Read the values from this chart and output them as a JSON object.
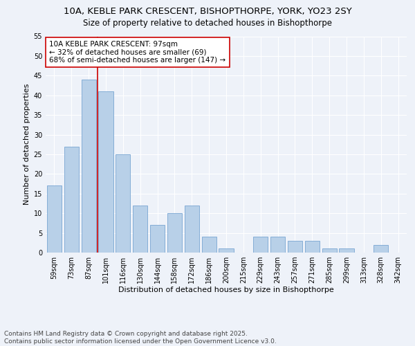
{
  "title1": "10A, KEBLE PARK CRESCENT, BISHOPTHORPE, YORK, YO23 2SY",
  "title2": "Size of property relative to detached houses in Bishopthorpe",
  "xlabel": "Distribution of detached houses by size in Bishopthorpe",
  "ylabel": "Number of detached properties",
  "categories": [
    "59sqm",
    "73sqm",
    "87sqm",
    "101sqm",
    "116sqm",
    "130sqm",
    "144sqm",
    "158sqm",
    "172sqm",
    "186sqm",
    "200sqm",
    "215sqm",
    "229sqm",
    "243sqm",
    "257sqm",
    "271sqm",
    "285sqm",
    "299sqm",
    "313sqm",
    "328sqm",
    "342sqm"
  ],
  "values": [
    17,
    27,
    44,
    41,
    25,
    12,
    7,
    10,
    12,
    4,
    1,
    0,
    4,
    4,
    3,
    3,
    1,
    1,
    0,
    2,
    0
  ],
  "bar_color": "#b8d0e8",
  "bar_edge_color": "#6699cc",
  "bar_edge_width": 0.5,
  "vline_x_index": 3,
  "vline_color": "#cc0000",
  "annotation_text": "10A KEBLE PARK CRESCENT: 97sqm\n← 32% of detached houses are smaller (69)\n68% of semi-detached houses are larger (147) →",
  "annotation_box_color": "#ffffff",
  "annotation_box_edge_color": "#cc0000",
  "ylim": [
    0,
    55
  ],
  "yticks": [
    0,
    5,
    10,
    15,
    20,
    25,
    30,
    35,
    40,
    45,
    50,
    55
  ],
  "background_color": "#eef2f9",
  "grid_color": "#ffffff",
  "footnote": "Contains HM Land Registry data © Crown copyright and database right 2025.\nContains public sector information licensed under the Open Government Licence v3.0.",
  "title_fontsize": 9.5,
  "subtitle_fontsize": 8.5,
  "axis_label_fontsize": 8,
  "tick_fontsize": 7,
  "annotation_fontsize": 7.5,
  "footnote_fontsize": 6.5
}
